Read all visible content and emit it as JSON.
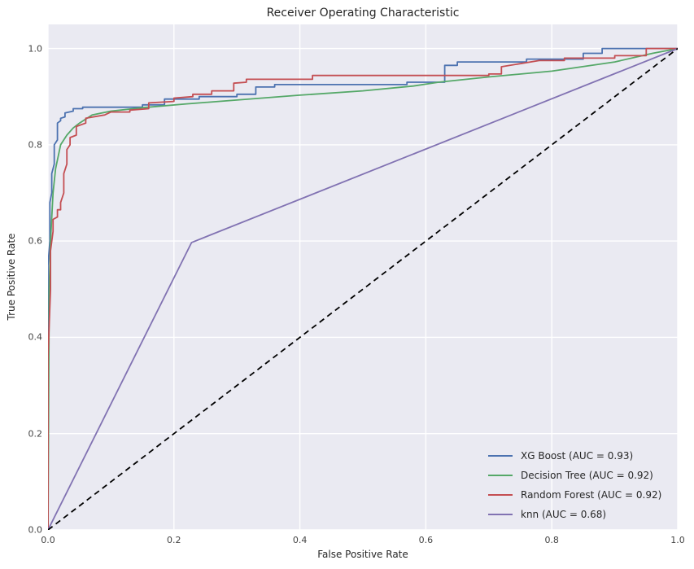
{
  "chart_data": {
    "type": "line",
    "title": "Receiver Operating Characteristic",
    "xlabel": "False Positive Rate",
    "ylabel": "True Positive Rate",
    "xlim": [
      0.0,
      1.0
    ],
    "ylim": [
      0.0,
      1.05
    ],
    "xticks": [
      0.0,
      0.2,
      0.4,
      0.6,
      0.8,
      1.0
    ],
    "yticks": [
      0.0,
      0.2,
      0.4,
      0.6,
      0.8,
      1.0
    ],
    "xtick_labels": [
      "0.0",
      "0.2",
      "0.4",
      "0.6",
      "0.8",
      "1.0"
    ],
    "ytick_labels": [
      "0.0",
      "0.2",
      "0.4",
      "0.6",
      "0.8",
      "1.0"
    ],
    "grid": true,
    "legend_position": "lower right",
    "figure_background": "#ffffff",
    "axes_background": "#eaeaf2",
    "grid_color": "#ffffff",
    "series": [
      {
        "name": "XG Boost (AUC = 0.93)",
        "color": "#4C72B0",
        "auc": 0.93,
        "x": [
          0,
          0,
          0.003,
          0.003,
          0.006,
          0.006,
          0.01,
          0.01,
          0.015,
          0.015,
          0.02,
          0.02,
          0.027,
          0.027,
          0.04,
          0.04,
          0.055,
          0.055,
          0.12,
          0.15,
          0.15,
          0.185,
          0.185,
          0.24,
          0.24,
          0.3,
          0.3,
          0.33,
          0.33,
          0.36,
          0.36,
          0.57,
          0.57,
          0.63,
          0.63,
          0.65,
          0.65,
          0.76,
          0.76,
          0.85,
          0.85,
          0.88,
          0.88,
          1.0
        ],
        "y": [
          0,
          0.55,
          0.6,
          0.68,
          0.7,
          0.74,
          0.76,
          0.8,
          0.81,
          0.845,
          0.85,
          0.855,
          0.858,
          0.866,
          0.87,
          0.875,
          0.875,
          0.878,
          0.878,
          0.878,
          0.883,
          0.883,
          0.895,
          0.895,
          0.9,
          0.9,
          0.905,
          0.905,
          0.92,
          0.92,
          0.925,
          0.925,
          0.93,
          0.93,
          0.965,
          0.965,
          0.972,
          0.972,
          0.978,
          0.978,
          0.99,
          0.99,
          1.0,
          1.0
        ]
      },
      {
        "name": "Decision Tree (AUC = 0.92)",
        "color": "#55A868",
        "auc": 0.92,
        "x": [
          0,
          0.002,
          0.004,
          0.008,
          0.012,
          0.02,
          0.03,
          0.04,
          0.05,
          0.07,
          0.1,
          0.15,
          0.22,
          0.3,
          0.4,
          0.5,
          0.58,
          0.62,
          0.7,
          0.8,
          0.9,
          0.96,
          1.0
        ],
        "y": [
          0,
          0.5,
          0.6,
          0.7,
          0.75,
          0.8,
          0.82,
          0.835,
          0.845,
          0.862,
          0.87,
          0.877,
          0.885,
          0.893,
          0.903,
          0.912,
          0.922,
          0.93,
          0.941,
          0.953,
          0.972,
          0.99,
          1.0
        ]
      },
      {
        "name": "Random Forest (AUC = 0.92)",
        "color": "#C44E52",
        "auc": 0.92,
        "x": [
          0,
          0,
          0.004,
          0.004,
          0.008,
          0.008,
          0.015,
          0.015,
          0.02,
          0.02,
          0.025,
          0.025,
          0.03,
          0.03,
          0.035,
          0.035,
          0.045,
          0.045,
          0.06,
          0.06,
          0.09,
          0.1,
          0.13,
          0.13,
          0.16,
          0.16,
          0.2,
          0.2,
          0.23,
          0.23,
          0.26,
          0.26,
          0.295,
          0.295,
          0.315,
          0.315,
          0.42,
          0.42,
          0.7,
          0.7,
          0.72,
          0.72,
          0.78,
          0.82,
          0.82,
          0.9,
          0.9,
          0.95,
          0.95,
          1.0
        ],
        "y": [
          0,
          0.36,
          0.5,
          0.58,
          0.62,
          0.645,
          0.65,
          0.665,
          0.665,
          0.68,
          0.7,
          0.74,
          0.76,
          0.79,
          0.8,
          0.815,
          0.82,
          0.838,
          0.845,
          0.855,
          0.862,
          0.868,
          0.868,
          0.872,
          0.875,
          0.887,
          0.89,
          0.897,
          0.9,
          0.905,
          0.905,
          0.912,
          0.912,
          0.928,
          0.93,
          0.936,
          0.936,
          0.944,
          0.944,
          0.947,
          0.947,
          0.962,
          0.975,
          0.975,
          0.98,
          0.98,
          0.985,
          0.985,
          1.0,
          1.0
        ]
      },
      {
        "name": "knn (AUC = 0.68)",
        "color": "#8172B2",
        "auc": 0.68,
        "x": [
          0,
          0.228,
          1.0
        ],
        "y": [
          0,
          0.597,
          1.0
        ]
      },
      {
        "name": "chance-diagonal",
        "color": "#000000",
        "dash": true,
        "legend": false,
        "width": 1.8,
        "x": [
          0,
          1.0
        ],
        "y": [
          0,
          1.0
        ]
      }
    ]
  }
}
